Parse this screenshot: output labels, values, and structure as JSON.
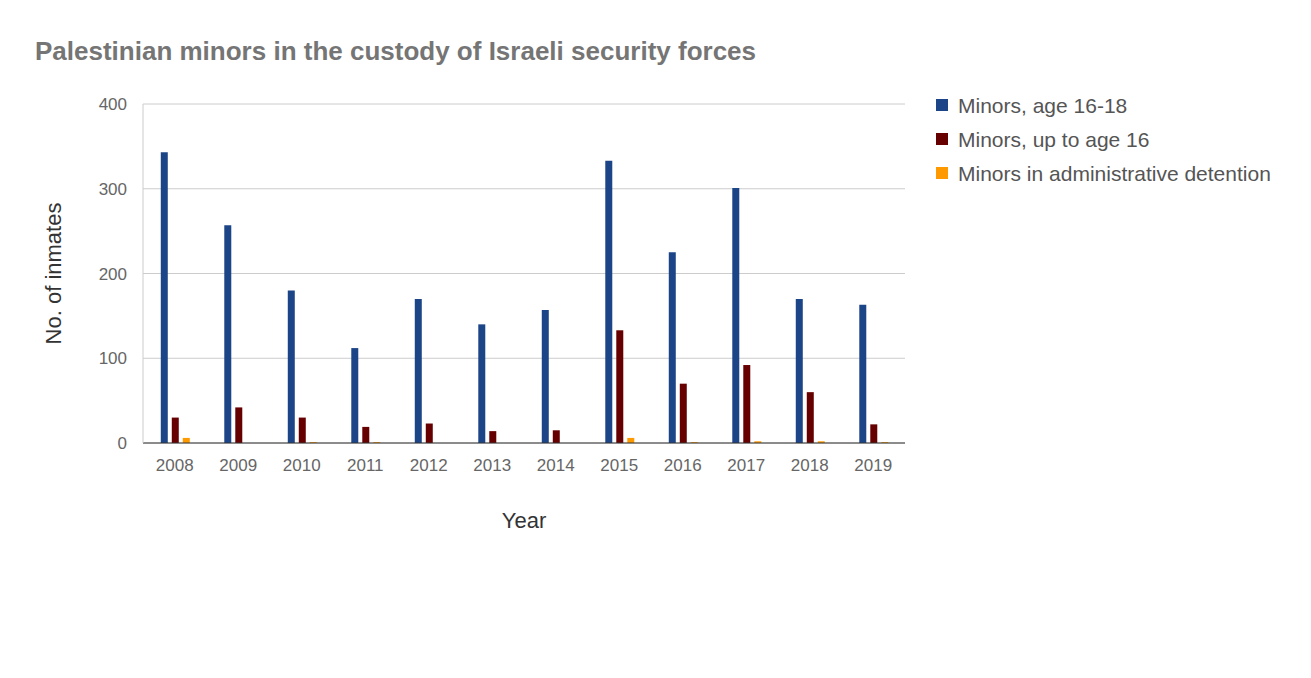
{
  "chart_data": {
    "type": "bar",
    "title": "Palestinian minors in the custody of Israeli security forces",
    "x_label": "Year",
    "y_label": "No. of inmates",
    "categories": [
      "2008",
      "2009",
      "2010",
      "2011",
      "2012",
      "2013",
      "2014",
      "2015",
      "2016",
      "2017",
      "2018",
      "2019"
    ],
    "series": [
      {
        "name": "Minors, age 16-18",
        "color": "#1c4587",
        "values": [
          343,
          257,
          180,
          112,
          170,
          140,
          157,
          333,
          225,
          301,
          170,
          163
        ]
      },
      {
        "name": "Minors, up to age 16",
        "color": "#660000",
        "values": [
          30,
          42,
          30,
          19,
          23,
          14,
          15,
          133,
          70,
          92,
          60,
          22
        ]
      },
      {
        "name": "Minors in administrative detention",
        "color": "#ff9900",
        "values": [
          6,
          0,
          1,
          1,
          0,
          0,
          0,
          6,
          1,
          2,
          2,
          1
        ]
      }
    ],
    "ylim": [
      0,
      400
    ],
    "yticks": [
      0,
      100,
      200,
      300,
      400
    ],
    "grid": true,
    "legend": "right"
  }
}
